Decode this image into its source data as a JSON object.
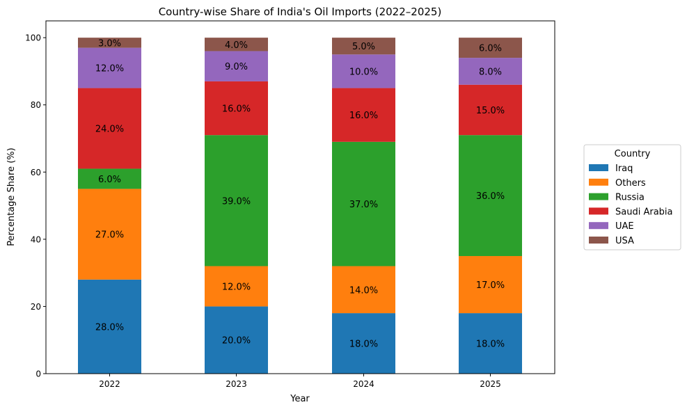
{
  "chart_data": {
    "type": "bar",
    "stacked": true,
    "title": "Country-wise Share of India's Oil Imports (2022–2025)",
    "xlabel": "Year",
    "ylabel": "Percentage Share (%)",
    "categories": [
      "2022",
      "2023",
      "2024",
      "2025"
    ],
    "ylim": [
      0,
      105
    ],
    "yticks": [
      0,
      20,
      40,
      60,
      80,
      100
    ],
    "grid": false,
    "legend": {
      "title": "Country",
      "placement": "right"
    },
    "series": [
      {
        "name": "Iraq",
        "color": "#1f77b4",
        "values": [
          28.0,
          20.0,
          18.0,
          18.0
        ],
        "labels": [
          "28.0%",
          "20.0%",
          "18.0%",
          "18.0%"
        ]
      },
      {
        "name": "Others",
        "color": "#ff7f0e",
        "values": [
          27.0,
          12.0,
          14.0,
          17.0
        ],
        "labels": [
          "27.0%",
          "12.0%",
          "14.0%",
          "17.0%"
        ]
      },
      {
        "name": "Russia",
        "color": "#2ca02c",
        "values": [
          6.0,
          39.0,
          37.0,
          36.0
        ],
        "labels": [
          "6.0%",
          "39.0%",
          "37.0%",
          "36.0%"
        ]
      },
      {
        "name": "Saudi Arabia",
        "color": "#d62728",
        "values": [
          24.0,
          16.0,
          16.0,
          15.0
        ],
        "labels": [
          "24.0%",
          "16.0%",
          "16.0%",
          "15.0%"
        ]
      },
      {
        "name": "UAE",
        "color": "#9467bd",
        "values": [
          12.0,
          9.0,
          10.0,
          8.0
        ],
        "labels": [
          "12.0%",
          "9.0%",
          "10.0%",
          "8.0%"
        ]
      },
      {
        "name": "USA",
        "color": "#8c564b",
        "values": [
          3.0,
          4.0,
          5.0,
          6.0
        ],
        "labels": [
          "3.0%",
          "4.0%",
          "5.0%",
          "6.0%"
        ]
      }
    ]
  }
}
